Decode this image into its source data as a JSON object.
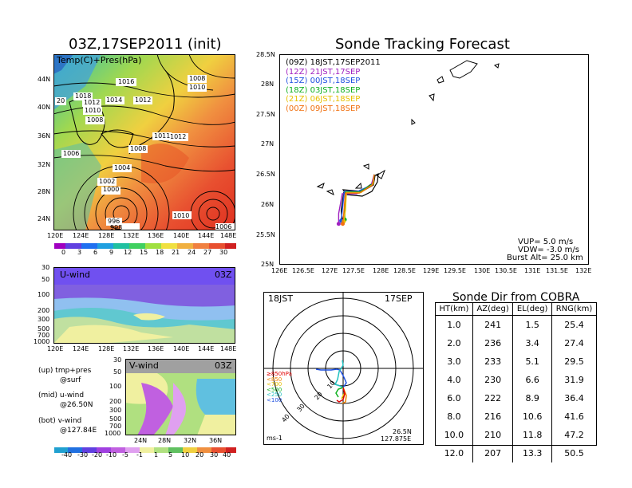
{
  "left": {
    "map_title": "03Z,17SEP2011 (init)",
    "map_label": "Temp(C)+Pres(hPa)",
    "lat_labels": [
      "44N",
      "40N",
      "36N",
      "32N",
      "28N",
      "24N"
    ],
    "lon_labels": [
      "120E",
      "124E",
      "128E",
      "132E",
      "136E",
      "140E",
      "144E",
      "148E"
    ],
    "pressure_labels": [
      "1016",
      "1018",
      "20",
      "1012",
      "1014",
      "1012",
      "1010",
      "1008",
      "1008",
      "1010",
      "1006",
      "1011",
      "1012",
      "1008",
      "1004",
      "1002",
      "1000",
      "996",
      "998",
      "1010",
      "1006",
      "1006"
    ],
    "temp_scale": [
      "0",
      "3",
      "6",
      "9",
      "12",
      "15",
      "18",
      "21",
      "24",
      "27",
      "30"
    ],
    "uwind_label": "U-wind",
    "uwind_time": "03Z",
    "vwind_label": "V-wind",
    "vwind_time": "03Z",
    "press_ticks": [
      "30",
      "50",
      "100",
      "200",
      "300",
      "500",
      "700",
      "1000"
    ],
    "vlat_labels": [
      "24N",
      "28N",
      "32N",
      "36N"
    ],
    "wind_scale": [
      "-40",
      "-30",
      "-20",
      "-10",
      "-5",
      "-1",
      "1",
      "5",
      "10",
      "20",
      "30",
      "40"
    ],
    "notes": [
      {
        "a": "(up) tmp+pres",
        "b": "@surf"
      },
      {
        "a": "(mid) u-wind",
        "b": "@26.50N"
      },
      {
        "a": "(bot) v-wind",
        "b": "@127.84E"
      }
    ]
  },
  "track": {
    "title": "Sonde Tracking Forecast",
    "legend": [
      {
        "tag": "(09Z)",
        "label": "18JST,17SEP2011",
        "color": "#000000"
      },
      {
        "tag": "(12Z)",
        "label": "21JST,17SEP",
        "color": "#a020c0"
      },
      {
        "tag": "(15Z)",
        "label": "00JST,18SEP",
        "color": "#1e50e0"
      },
      {
        "tag": "(18Z)",
        "label": "03JST,18SEP",
        "color": "#10b020"
      },
      {
        "tag": "(21Z)",
        "label": "06JST,18SEP",
        "color": "#e8c000"
      },
      {
        "tag": "(00Z)",
        "label": "09JST,18SEP",
        "color": "#f07010"
      }
    ],
    "info": [
      "VUP= 5.0 m/s",
      "VDW= -3.0 m/s",
      "Burst Alt= 25.0 km"
    ]
  },
  "chart_data": {
    "type": "scatter",
    "title": "Sonde Tracking Forecast",
    "xlim": [
      126,
      132
    ],
    "ylim": [
      25,
      28.5
    ],
    "x_ticks": [
      "126E",
      "126.5E",
      "127E",
      "127.5E",
      "128E",
      "128.5E",
      "129E",
      "129.5E",
      "130E",
      "130.5E",
      "131E",
      "131.5E",
      "132E"
    ],
    "y_ticks": [
      "28.5N",
      "28N",
      "27.5N",
      "27N",
      "26.5N",
      "26N",
      "25.5N",
      "25N"
    ],
    "series": [
      {
        "name": "18JST,17SEP2011",
        "color": "#000000",
        "points": [
          [
            127.84,
            26.5
          ],
          [
            127.8,
            26.35
          ],
          [
            127.55,
            26.2
          ],
          [
            127.25,
            26.2
          ],
          [
            127.2,
            25.9
          ],
          [
            127.22,
            25.75
          ]
        ]
      },
      {
        "name": "21JST,17SEP",
        "color": "#a020c0",
        "points": [
          [
            127.84,
            26.5
          ],
          [
            127.78,
            26.32
          ],
          [
            127.5,
            26.18
          ],
          [
            127.22,
            26.18
          ],
          [
            127.15,
            25.85
          ],
          [
            127.15,
            25.68
          ]
        ]
      },
      {
        "name": "00JST,18SEP",
        "color": "#1e50e0",
        "points": [
          [
            127.84,
            26.5
          ],
          [
            127.8,
            26.33
          ],
          [
            127.52,
            26.22
          ],
          [
            127.26,
            26.22
          ],
          [
            127.22,
            25.9
          ],
          [
            127.2,
            25.73
          ]
        ]
      },
      {
        "name": "03JST,18SEP",
        "color": "#10b020",
        "points": [
          [
            127.84,
            26.5
          ],
          [
            127.82,
            26.35
          ],
          [
            127.56,
            26.21
          ],
          [
            127.28,
            26.21
          ],
          [
            127.27,
            25.95
          ],
          [
            127.27,
            25.75
          ]
        ]
      },
      {
        "name": "06JST,18SEP",
        "color": "#e8c000",
        "points": [
          [
            127.84,
            26.5
          ],
          [
            127.82,
            26.34
          ],
          [
            127.58,
            26.2
          ],
          [
            127.3,
            26.2
          ],
          [
            127.28,
            25.9
          ],
          [
            127.25,
            25.72
          ]
        ]
      },
      {
        "name": "09JST,18SEP",
        "color": "#f07010",
        "points": [
          [
            127.84,
            26.5
          ],
          [
            127.8,
            26.32
          ],
          [
            127.55,
            26.19
          ],
          [
            127.28,
            26.19
          ],
          [
            127.25,
            25.85
          ],
          [
            127.23,
            25.68
          ]
        ]
      }
    ]
  },
  "polar": {
    "time_label": "18JST",
    "date_label": "17SEP",
    "levels": [
      "≥850hPa",
      "<850",
      "<700",
      "<500",
      "<250",
      "<100"
    ],
    "level_colors": [
      "#e00000",
      "#f08000",
      "#e8c000",
      "#10b020",
      "#20c0c0",
      "#1e50e0"
    ],
    "ring_labels": [
      "10",
      "20",
      "30",
      "40"
    ],
    "unit": "ms-1",
    "lat": "26.5N",
    "lon": "127.875E"
  },
  "table": {
    "title": "Sonde Dir from COBRA",
    "headers": [
      "HT(km)",
      "AZ(deg)",
      "EL(deg)",
      "RNG(km)"
    ],
    "rows": [
      [
        "1.0",
        "241",
        "1.5",
        "25.4"
      ],
      [
        "2.0",
        "236",
        "3.4",
        "27.4"
      ],
      [
        "3.0",
        "233",
        "5.1",
        "29.5"
      ],
      [
        "4.0",
        "230",
        "6.6",
        "31.9"
      ],
      [
        "6.0",
        "222",
        "8.9",
        "36.4"
      ],
      [
        "8.0",
        "216",
        "10.6",
        "41.6"
      ],
      [
        "10.0",
        "210",
        "11.8",
        "47.2"
      ],
      [
        "12.0",
        "207",
        "13.3",
        "50.5"
      ]
    ]
  }
}
